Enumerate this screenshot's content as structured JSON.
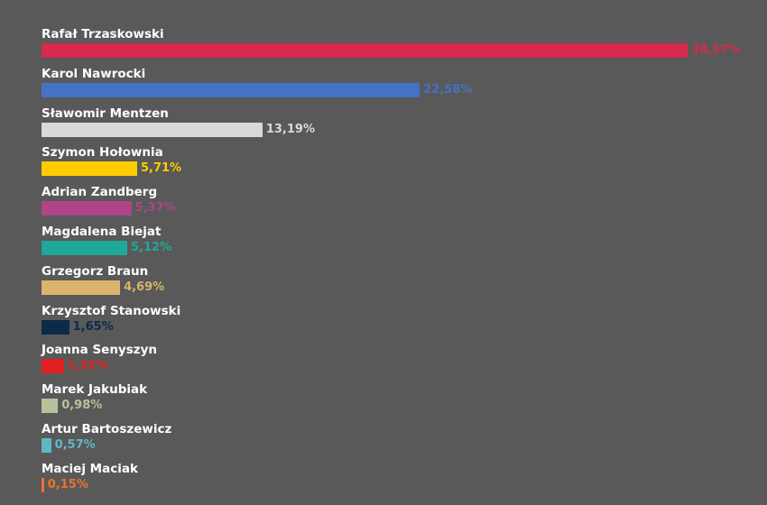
{
  "chart_data": {
    "type": "bar",
    "orientation": "horizontal",
    "unit": "%",
    "xlim": [
      0,
      38.57
    ],
    "categories": [
      "Rafał Trzaskowski",
      "Karol Nawrocki",
      "Sławomir Mentzen",
      "Szymon Hołownia",
      "Adrian Zandberg",
      "Magdalena Biejat",
      "Grzegorz Braun",
      "Krzysztof Stanowski",
      "Joanna Senyszyn",
      "Marek Jakubiak",
      "Artur Bartoszewicz",
      "Maciej Maciak"
    ],
    "values": [
      38.57,
      22.58,
      13.19,
      5.71,
      5.37,
      5.12,
      4.69,
      1.65,
      1.32,
      0.98,
      0.57,
      0.15
    ],
    "value_labels": [
      "38,57%",
      "22,58%",
      "13,19%",
      "5,71%",
      "5,37%",
      "5,12%",
      "4,69%",
      "1,65%",
      "1,32%",
      "0,98%",
      "0,57%",
      "0,15%"
    ],
    "colors": [
      "#d8294e",
      "#4472c4",
      "#d9d9d9",
      "#ffcc00",
      "#b0448a",
      "#1fa99a",
      "#d9b46a",
      "#0d2a4a",
      "#e02020",
      "#b5c29a",
      "#5fb8c6",
      "#e8762a"
    ],
    "grid": false,
    "legend": "none"
  }
}
